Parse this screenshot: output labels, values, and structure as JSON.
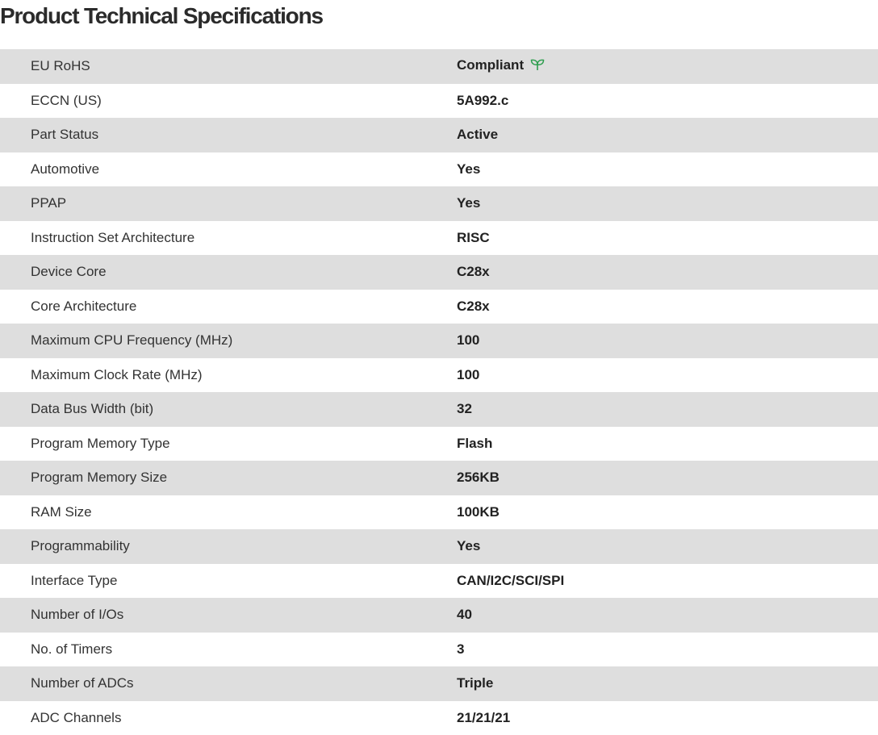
{
  "title": "Product Technical Specifications",
  "accent_color": "#2e9e4f",
  "specs": [
    {
      "label": "EU RoHS",
      "value": "Compliant",
      "icon": "leaf-icon"
    },
    {
      "label": "ECCN (US)",
      "value": "5A992.c"
    },
    {
      "label": "Part Status",
      "value": "Active"
    },
    {
      "label": "Automotive",
      "value": "Yes"
    },
    {
      "label": "PPAP",
      "value": "Yes"
    },
    {
      "label": "Instruction Set Architecture",
      "value": "RISC"
    },
    {
      "label": "Device Core",
      "value": "C28x"
    },
    {
      "label": "Core Architecture",
      "value": "C28x"
    },
    {
      "label": "Maximum CPU Frequency (MHz)",
      "value": "100"
    },
    {
      "label": "Maximum Clock Rate (MHz)",
      "value": "100"
    },
    {
      "label": "Data Bus Width (bit)",
      "value": "32"
    },
    {
      "label": "Program Memory Type",
      "value": "Flash"
    },
    {
      "label": "Program Memory Size",
      "value": "256KB"
    },
    {
      "label": "RAM Size",
      "value": "100KB"
    },
    {
      "label": "Programmability",
      "value": "Yes"
    },
    {
      "label": "Interface Type",
      "value": "CAN/I2C/SCI/SPI"
    },
    {
      "label": "Number of I/Os",
      "value": "40"
    },
    {
      "label": "No. of Timers",
      "value": "3"
    },
    {
      "label": "Number of ADCs",
      "value": "Triple"
    },
    {
      "label": "ADC Channels",
      "value": "21/21/21"
    }
  ]
}
